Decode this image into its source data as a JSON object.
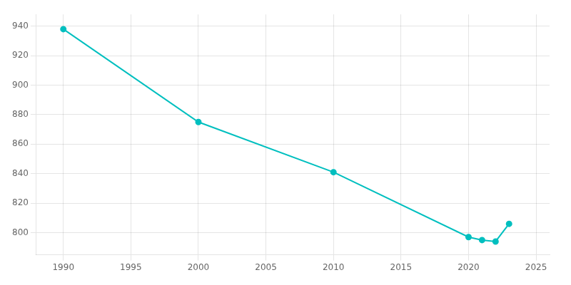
{
  "chart_data": {
    "type": "line",
    "x": [
      1990,
      2000,
      2010,
      2020,
      2021,
      2022,
      2023
    ],
    "values": [
      938,
      875,
      841,
      797,
      795,
      794,
      806
    ],
    "color": "#00BFBF",
    "marker": "circle",
    "xlim": [
      1988,
      2026
    ],
    "ylim": [
      785,
      948
    ],
    "xticks": [
      1990,
      1995,
      2000,
      2005,
      2010,
      2015,
      2020,
      2025
    ],
    "yticks": [
      800,
      820,
      840,
      860,
      880,
      900,
      920,
      940
    ],
    "grid": true
  }
}
